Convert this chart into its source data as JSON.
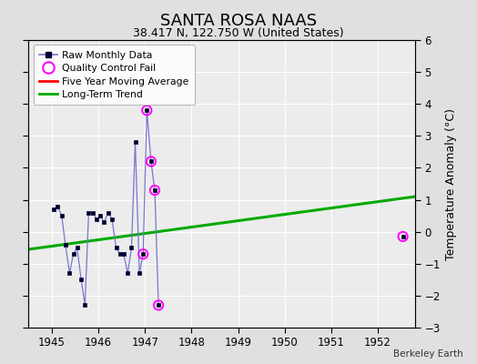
{
  "title": "SANTA ROSA NAAS",
  "subtitle": "38.417 N, 122.750 W (United States)",
  "ylabel": "Temperature Anomaly (°C)",
  "attribution": "Berkeley Earth",
  "xlim": [
    1944.5,
    1952.8
  ],
  "ylim": [
    -3,
    6
  ],
  "yticks": [
    -3,
    -2,
    -1,
    0,
    1,
    2,
    3,
    4,
    5,
    6
  ],
  "xticks": [
    1945,
    1946,
    1947,
    1948,
    1949,
    1950,
    1951,
    1952
  ],
  "bg_color": "#e0e0e0",
  "plot_bg_color": "#ececec",
  "raw_segments": [
    {
      "x": [
        1945.04,
        1945.12,
        1945.21,
        1945.29,
        1945.38,
        1945.46,
        1945.54,
        1945.63,
        1945.71,
        1945.79,
        1945.88,
        1945.96,
        1946.04,
        1946.12,
        1946.21,
        1946.29,
        1946.38,
        1946.46,
        1946.54,
        1946.63,
        1946.71,
        1946.79,
        1946.88,
        1946.96,
        1947.04,
        1947.13,
        1947.21,
        1947.29
      ],
      "y": [
        0.7,
        0.8,
        0.5,
        -0.4,
        -1.3,
        -0.7,
        -0.5,
        -1.5,
        -2.3,
        0.6,
        0.6,
        0.4,
        0.5,
        0.3,
        0.6,
        0.4,
        -0.5,
        -0.7,
        -0.7,
        -1.3,
        -0.5,
        2.8,
        -1.3,
        -0.7,
        3.8,
        2.2,
        1.3,
        -2.3
      ]
    }
  ],
  "isolated_x": [
    1952.54
  ],
  "isolated_y": [
    -0.15
  ],
  "qc_x": [
    1946.96,
    1947.04,
    1947.13,
    1947.21,
    1947.29,
    1952.54
  ],
  "qc_y": [
    -0.7,
    3.8,
    2.2,
    1.3,
    -2.3,
    -0.15
  ],
  "trend_x": [
    1944.5,
    1952.8
  ],
  "trend_y": [
    -0.55,
    1.1
  ],
  "raw_line_color": "#7777cc",
  "raw_marker_color": "#000033",
  "qc_marker_color": "#ff00ff",
  "trend_color": "#00aa00",
  "moving_avg_color": "#ff0000",
  "title_fontsize": 13,
  "subtitle_fontsize": 9,
  "tick_fontsize": 8.5,
  "ylabel_fontsize": 9
}
